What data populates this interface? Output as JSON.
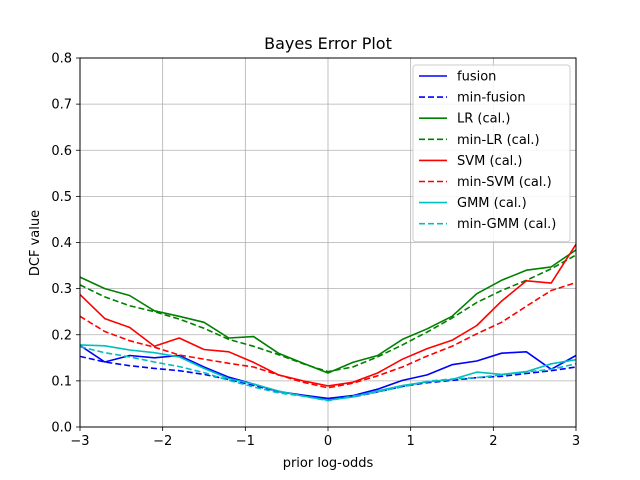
{
  "chart_data": {
    "type": "line",
    "title": "Bayes Error Plot",
    "xlabel": "prior log-odds",
    "ylabel": "DCF value",
    "xlim": [
      -3,
      3
    ],
    "ylim": [
      0,
      0.8
    ],
    "xticks": [
      -3,
      -2,
      -1,
      0,
      1,
      2,
      3
    ],
    "xtick_labels": [
      "−3",
      "−2",
      "−1",
      "0",
      "1",
      "2",
      "3"
    ],
    "yticks": [
      0.0,
      0.1,
      0.2,
      0.3,
      0.4,
      0.5,
      0.6,
      0.7,
      0.8
    ],
    "ytick_labels": [
      "0.0",
      "0.1",
      "0.2",
      "0.3",
      "0.4",
      "0.5",
      "0.6",
      "0.7",
      "0.8"
    ],
    "grid": true,
    "legend_position": "top-right",
    "x": [
      -3.0,
      -2.7,
      -2.4,
      -2.1,
      -1.8,
      -1.5,
      -1.2,
      -0.9,
      -0.6,
      -0.3,
      0.0,
      0.3,
      0.6,
      0.9,
      1.2,
      1.5,
      1.8,
      2.1,
      2.4,
      2.7,
      3.0
    ],
    "series": [
      {
        "name": "fusion",
        "color": "#0000ff",
        "dash": "solid",
        "values": [
          0.177,
          0.141,
          0.155,
          0.15,
          0.155,
          0.13,
          0.108,
          0.093,
          0.077,
          0.069,
          0.062,
          0.068,
          0.082,
          0.101,
          0.113,
          0.135,
          0.143,
          0.16,
          0.163,
          0.125,
          0.155
        ]
      },
      {
        "name": "min-fusion",
        "color": "#0000ff",
        "dash": "dashed",
        "values": [
          0.153,
          0.141,
          0.133,
          0.127,
          0.122,
          0.114,
          0.103,
          0.09,
          0.077,
          0.068,
          0.06,
          0.065,
          0.076,
          0.088,
          0.096,
          0.101,
          0.107,
          0.11,
          0.116,
          0.122,
          0.13
        ]
      },
      {
        "name": "LR (cal.)",
        "color": "#008000",
        "dash": "solid",
        "values": [
          0.325,
          0.3,
          0.285,
          0.252,
          0.24,
          0.227,
          0.193,
          0.196,
          0.16,
          0.138,
          0.117,
          0.14,
          0.155,
          0.19,
          0.213,
          0.24,
          0.289,
          0.318,
          0.34,
          0.347,
          0.384
        ]
      },
      {
        "name": "min-LR (cal.)",
        "color": "#008000",
        "dash": "dashed",
        "values": [
          0.308,
          0.282,
          0.263,
          0.25,
          0.234,
          0.214,
          0.19,
          0.175,
          0.157,
          0.137,
          0.12,
          0.13,
          0.152,
          0.178,
          0.206,
          0.236,
          0.27,
          0.296,
          0.318,
          0.343,
          0.373
        ]
      },
      {
        "name": "SVM (cal.)",
        "color": "#ff0000",
        "dash": "solid",
        "values": [
          0.287,
          0.235,
          0.216,
          0.175,
          0.193,
          0.168,
          0.163,
          0.14,
          0.113,
          0.1,
          0.089,
          0.097,
          0.117,
          0.147,
          0.17,
          0.188,
          0.22,
          0.273,
          0.317,
          0.312,
          0.396
        ]
      },
      {
        "name": "min-SVM (cal.)",
        "color": "#ff0000",
        "dash": "dashed",
        "values": [
          0.24,
          0.207,
          0.187,
          0.173,
          0.156,
          0.147,
          0.138,
          0.13,
          0.113,
          0.097,
          0.085,
          0.095,
          0.111,
          0.13,
          0.154,
          0.175,
          0.202,
          0.227,
          0.262,
          0.296,
          0.313
        ]
      },
      {
        "name": "GMM (cal.)",
        "color": "#00bfbf",
        "dash": "solid",
        "values": [
          0.178,
          0.176,
          0.167,
          0.161,
          0.152,
          0.127,
          0.105,
          0.093,
          0.078,
          0.067,
          0.058,
          0.065,
          0.078,
          0.09,
          0.098,
          0.103,
          0.119,
          0.114,
          0.12,
          0.137,
          0.146
        ]
      },
      {
        "name": "min-GMM (cal.)",
        "color": "#00bfbf",
        "dash": "dashed",
        "values": [
          0.174,
          0.161,
          0.152,
          0.141,
          0.131,
          0.118,
          0.101,
          0.087,
          0.074,
          0.067,
          0.057,
          0.067,
          0.076,
          0.087,
          0.099,
          0.104,
          0.107,
          0.113,
          0.119,
          0.125,
          0.137
        ]
      }
    ]
  }
}
